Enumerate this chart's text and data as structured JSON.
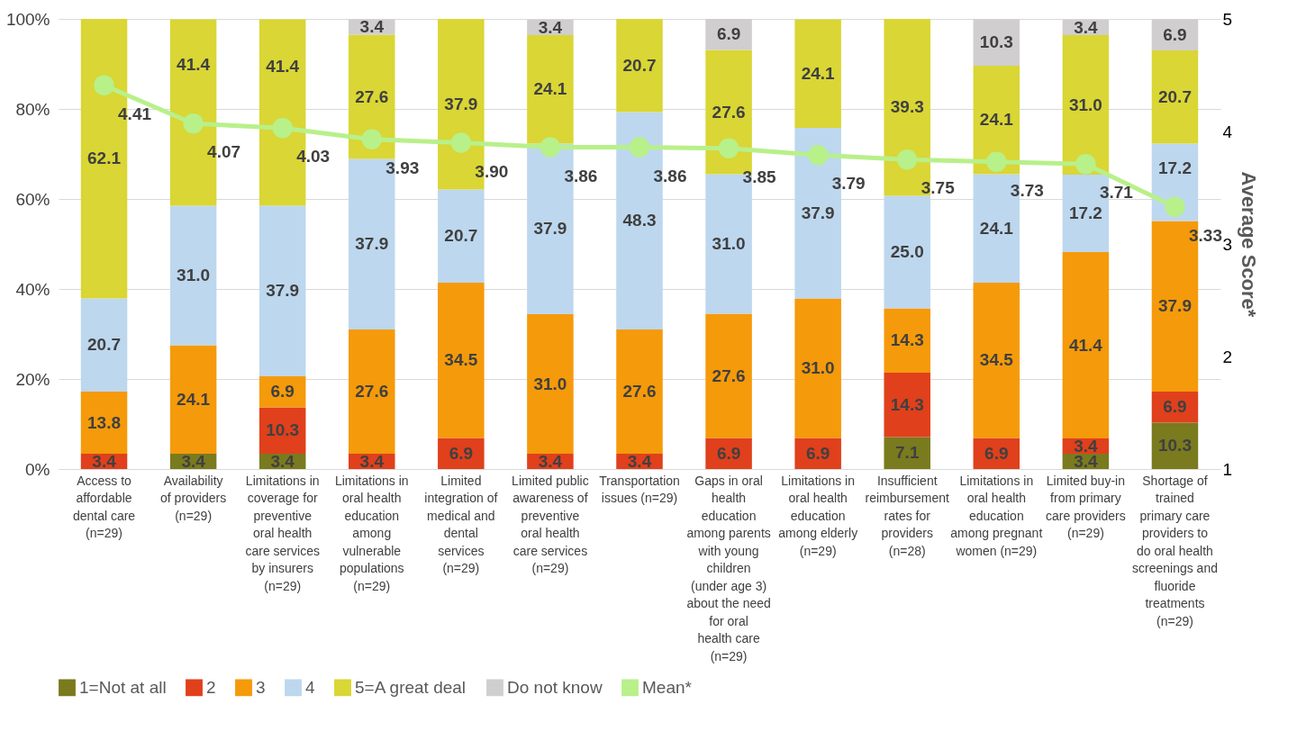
{
  "chart_data": {
    "type": "bar",
    "stacked": true,
    "grid": "y",
    "legend": "bottom",
    "marker": "circle",
    "y2label": "Average Score*",
    "categories": [
      "Access to affordable dental care (n=29)",
      "Availability of providers (n=29)",
      "Limitations in coverage for preventive oral health care services by insurers (n=29)",
      "Limitations in oral health education among vulnerable populations (n=29)",
      "Limited integration of medical and dental services (n=29)",
      "Limited public awareness of preventive oral health care services (n=29)",
      "Transportation issues (n=29)",
      "Gaps in oral health education among parents with young children (under age 3) about the need for oral health care (n=29)",
      "Limitations in oral health education among elderly (n=29)",
      "Insufficient reimbursement rates for providers (n=28)",
      "Limitations in oral health education among pregnant women (n=29)",
      "Limited buy-in from primary care providers (n=29)",
      "Shortage of trained primary care providers to do oral health screenings and fluoride treatments (n=29)"
    ],
    "ylim": [
      0,
      100
    ],
    "yticks": [
      {
        "value": 0,
        "label": "0%"
      },
      {
        "value": 20,
        "label": "20%"
      },
      {
        "value": 40,
        "label": "40%"
      },
      {
        "value": 60,
        "label": "60%"
      },
      {
        "value": 80,
        "label": "80%"
      },
      {
        "value": 100,
        "label": "100%"
      }
    ],
    "y2lim": [
      1,
      5
    ],
    "y2ticks": [
      1,
      2,
      3,
      4,
      5
    ],
    "series": [
      {
        "name": "1=Not at all",
        "color": "#7a7a1e",
        "values": [
          null,
          3.4,
          3.4,
          null,
          null,
          null,
          null,
          null,
          null,
          7.1,
          null,
          3.4,
          10.3
        ],
        "value_labels": [
          null,
          "3.4",
          "3.4",
          null,
          null,
          null,
          null,
          null,
          null,
          "7.1",
          null,
          "3.4",
          "10.3"
        ]
      },
      {
        "name": "2",
        "color": "#e0401c",
        "values": [
          3.4,
          null,
          10.3,
          3.4,
          6.9,
          3.4,
          3.4,
          6.9,
          6.9,
          14.3,
          6.9,
          3.4,
          6.9
        ],
        "value_labels": [
          "3.4",
          null,
          "10.3",
          "3.4",
          "6.9",
          "3.4",
          "3.4",
          "6.9",
          "6.9",
          "14.3",
          "6.9",
          "3.4",
          "6.9"
        ]
      },
      {
        "name": "3",
        "color": "#f59a0a",
        "values": [
          13.8,
          24.1,
          6.9,
          27.6,
          34.5,
          31.0,
          27.6,
          27.6,
          31.0,
          14.3,
          34.5,
          41.4,
          37.9
        ],
        "value_labels": [
          "13.8",
          "24.1",
          "6.9",
          "27.6",
          "34.5",
          "31.0",
          "27.6",
          "27.6",
          "31.0",
          "14.3",
          "34.5",
          "41.4",
          "37.9"
        ]
      },
      {
        "name": "4",
        "color": "#bdd7ee",
        "values": [
          20.7,
          31.0,
          37.9,
          37.9,
          20.7,
          37.9,
          48.3,
          31.0,
          37.9,
          25.0,
          24.1,
          17.2,
          17.2
        ],
        "value_labels": [
          "20.7",
          "31.0",
          "37.9",
          "37.9",
          "20.7",
          "37.9",
          "48.3",
          "31.0",
          "37.9",
          "25.0",
          "24.1",
          "17.2",
          "17.2"
        ]
      },
      {
        "name": "5=A great deal",
        "color": "#d9d635",
        "values": [
          62.1,
          41.4,
          41.4,
          27.6,
          37.9,
          24.1,
          20.7,
          27.6,
          24.1,
          39.3,
          24.1,
          31.0,
          20.7
        ],
        "value_labels": [
          "62.1",
          "41.4",
          "41.4",
          "27.6",
          "37.9",
          "24.1",
          "20.7",
          "27.6",
          "24.1",
          "39.3",
          "24.1",
          "31.0",
          "20.7"
        ]
      },
      {
        "name": "Do not know",
        "color": "#d0cece",
        "values": [
          null,
          null,
          null,
          3.4,
          null,
          3.4,
          null,
          6.9,
          null,
          null,
          10.3,
          3.4,
          6.9
        ],
        "value_labels": [
          null,
          null,
          null,
          "3.4",
          null,
          "3.4",
          null,
          "6.9",
          null,
          null,
          "10.3",
          "3.4",
          "6.9"
        ]
      },
      {
        "name": "Mean*",
        "type": "line",
        "axis": "y2",
        "color": "#b8f08a",
        "values": [
          4.41,
          4.07,
          4.03,
          3.93,
          3.9,
          3.86,
          3.86,
          3.85,
          3.79,
          3.75,
          3.73,
          3.71,
          3.33
        ],
        "value_labels": [
          "4.41",
          "4.07",
          "4.03",
          "3.93",
          "3.90",
          "3.86",
          "3.86",
          "3.85",
          "3.79",
          "3.75",
          "3.73",
          "3.71",
          "3.33"
        ]
      }
    ]
  }
}
